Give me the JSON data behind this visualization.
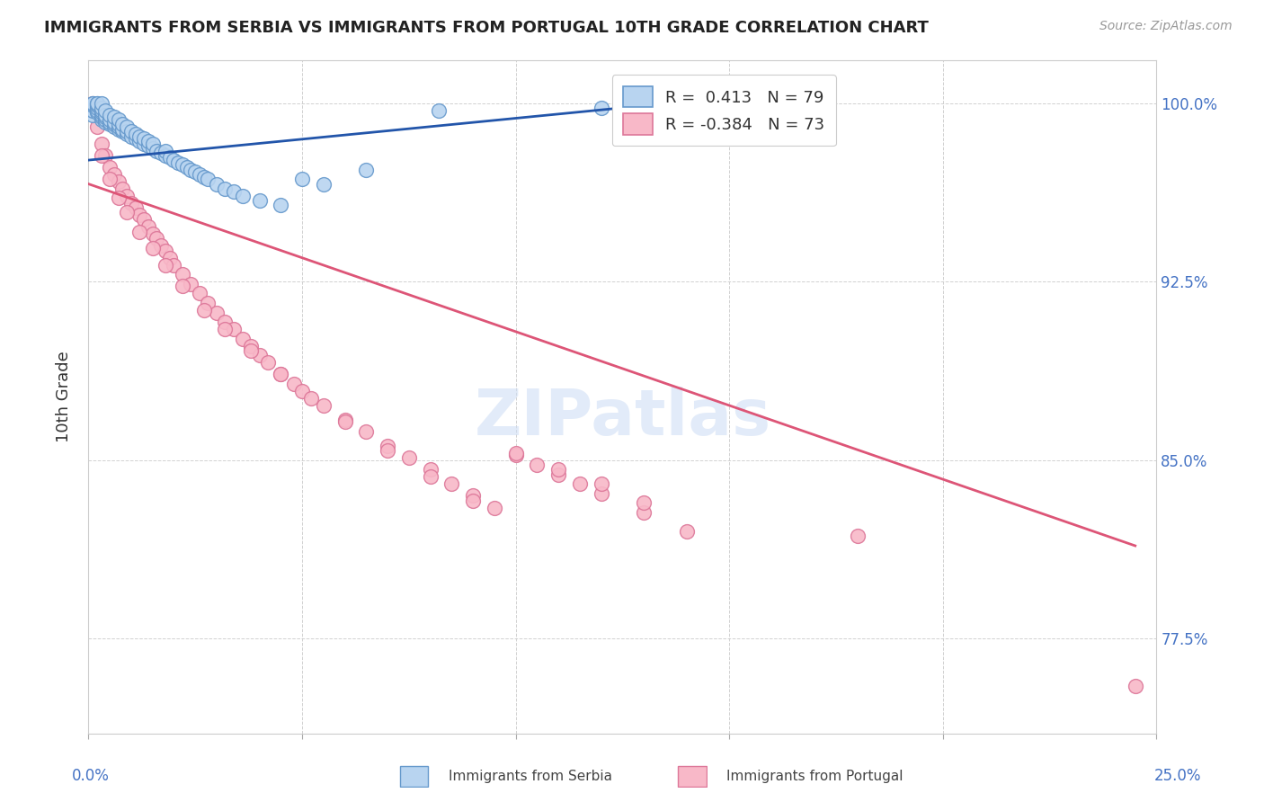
{
  "title": "IMMIGRANTS FROM SERBIA VS IMMIGRANTS FROM PORTUGAL 10TH GRADE CORRELATION CHART",
  "source": "Source: ZipAtlas.com",
  "ylabel": "10th Grade",
  "xlim": [
    0.0,
    0.25
  ],
  "ylim": [
    0.735,
    1.018
  ],
  "ytick_values": [
    0.775,
    0.85,
    0.925,
    1.0
  ],
  "xtick_values": [
    0.0,
    0.05,
    0.1,
    0.15,
    0.2,
    0.25
  ],
  "serbia_color": "#b8d4f0",
  "portugal_color": "#f8b8c8",
  "serbia_edge_color": "#6699cc",
  "portugal_edge_color": "#dd7799",
  "serbia_line_color": "#2255aa",
  "portugal_line_color": "#dd5577",
  "watermark_color": "#d0dff5",
  "serbia_x": [
    0.001,
    0.001,
    0.001,
    0.001,
    0.001,
    0.002,
    0.002,
    0.002,
    0.002,
    0.002,
    0.002,
    0.003,
    0.003,
    0.003,
    0.003,
    0.003,
    0.003,
    0.003,
    0.004,
    0.004,
    0.004,
    0.004,
    0.004,
    0.005,
    0.005,
    0.005,
    0.005,
    0.006,
    0.006,
    0.006,
    0.006,
    0.007,
    0.007,
    0.007,
    0.007,
    0.008,
    0.008,
    0.008,
    0.009,
    0.009,
    0.009,
    0.01,
    0.01,
    0.011,
    0.011,
    0.012,
    0.012,
    0.013,
    0.013,
    0.014,
    0.014,
    0.015,
    0.015,
    0.016,
    0.017,
    0.018,
    0.018,
    0.019,
    0.02,
    0.021,
    0.022,
    0.023,
    0.024,
    0.025,
    0.026,
    0.027,
    0.028,
    0.03,
    0.032,
    0.034,
    0.036,
    0.04,
    0.045,
    0.05,
    0.055,
    0.065,
    0.082,
    0.12,
    0.125
  ],
  "serbia_y": [
    0.995,
    0.997,
    0.999,
    1.0,
    1.0,
    0.996,
    0.997,
    0.998,
    0.999,
    1.0,
    1.0,
    0.993,
    0.994,
    0.995,
    0.996,
    0.997,
    0.998,
    1.0,
    0.992,
    0.993,
    0.994,
    0.995,
    0.997,
    0.991,
    0.992,
    0.993,
    0.995,
    0.99,
    0.991,
    0.992,
    0.994,
    0.989,
    0.99,
    0.991,
    0.993,
    0.988,
    0.989,
    0.991,
    0.987,
    0.988,
    0.99,
    0.986,
    0.988,
    0.985,
    0.987,
    0.984,
    0.986,
    0.983,
    0.985,
    0.982,
    0.984,
    0.981,
    0.983,
    0.98,
    0.979,
    0.978,
    0.98,
    0.977,
    0.976,
    0.975,
    0.974,
    0.973,
    0.972,
    0.971,
    0.97,
    0.969,
    0.968,
    0.966,
    0.964,
    0.963,
    0.961,
    0.959,
    0.957,
    0.968,
    0.966,
    0.972,
    0.997,
    0.998,
    0.997
  ],
  "portugal_x": [
    0.001,
    0.002,
    0.003,
    0.004,
    0.005,
    0.006,
    0.007,
    0.008,
    0.009,
    0.01,
    0.011,
    0.012,
    0.013,
    0.014,
    0.015,
    0.016,
    0.017,
    0.018,
    0.019,
    0.02,
    0.022,
    0.024,
    0.026,
    0.028,
    0.03,
    0.032,
    0.034,
    0.036,
    0.038,
    0.04,
    0.042,
    0.045,
    0.048,
    0.05,
    0.055,
    0.06,
    0.065,
    0.07,
    0.075,
    0.08,
    0.085,
    0.09,
    0.095,
    0.1,
    0.105,
    0.11,
    0.115,
    0.12,
    0.13,
    0.14,
    0.003,
    0.005,
    0.007,
    0.009,
    0.012,
    0.015,
    0.018,
    0.022,
    0.027,
    0.032,
    0.038,
    0.045,
    0.052,
    0.06,
    0.07,
    0.08,
    0.09,
    0.1,
    0.11,
    0.12,
    0.13,
    0.18,
    0.245
  ],
  "portugal_y": [
    1.0,
    0.99,
    0.983,
    0.978,
    0.973,
    0.97,
    0.967,
    0.964,
    0.961,
    0.958,
    0.956,
    0.953,
    0.951,
    0.948,
    0.945,
    0.943,
    0.94,
    0.938,
    0.935,
    0.932,
    0.928,
    0.924,
    0.92,
    0.916,
    0.912,
    0.908,
    0.905,
    0.901,
    0.898,
    0.894,
    0.891,
    0.886,
    0.882,
    0.879,
    0.873,
    0.867,
    0.862,
    0.856,
    0.851,
    0.846,
    0.84,
    0.835,
    0.83,
    0.852,
    0.848,
    0.844,
    0.84,
    0.836,
    0.828,
    0.82,
    0.978,
    0.968,
    0.96,
    0.954,
    0.946,
    0.939,
    0.932,
    0.923,
    0.913,
    0.905,
    0.896,
    0.886,
    0.876,
    0.866,
    0.854,
    0.843,
    0.833,
    0.853,
    0.846,
    0.84,
    0.832,
    0.818,
    0.755
  ],
  "serbia_line_x": [
    0.0,
    0.125
  ],
  "serbia_line_y": [
    0.976,
    0.998
  ],
  "portugal_line_x": [
    0.0,
    0.245
  ],
  "portugal_line_y": [
    0.966,
    0.814
  ]
}
